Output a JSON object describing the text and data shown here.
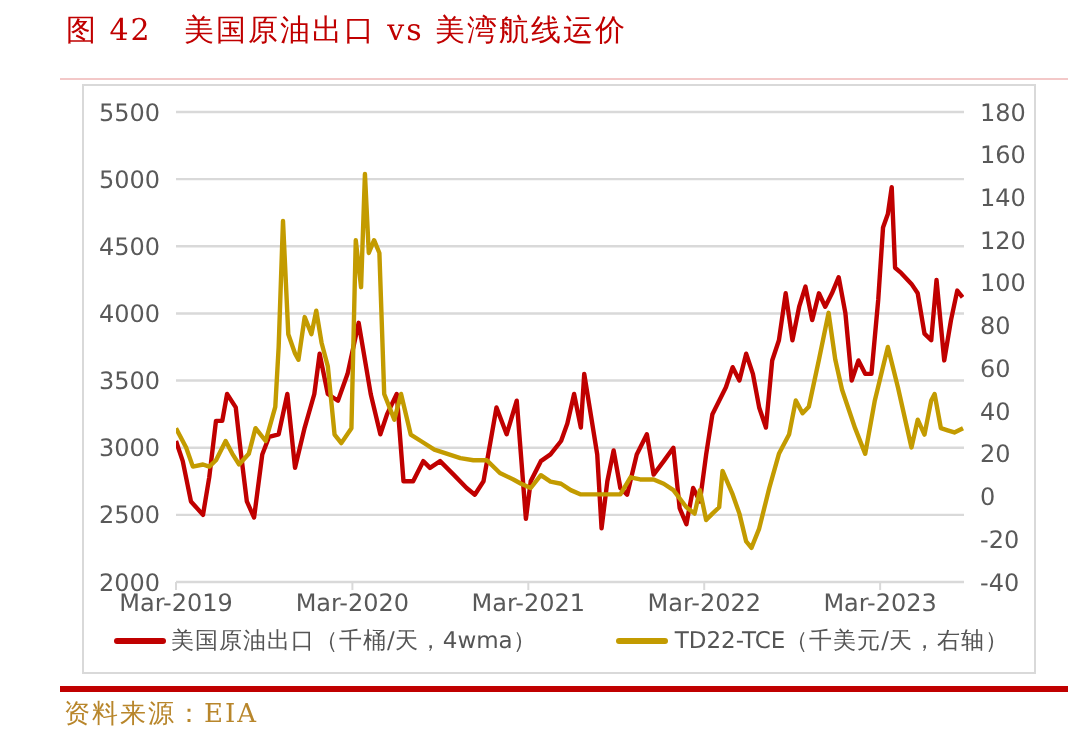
{
  "chart_data": {
    "type": "line",
    "title": "图 42　美国原油出口 vs 美湾航线运价",
    "annotations": [
      "资料来源：EIA"
    ],
    "legend": "bottom",
    "grid": "y",
    "marker": "none",
    "line_style": "solid",
    "xlim": [
      "2019-03-01",
      "2023-08-22"
    ],
    "xticks": [
      {
        "value": "2019-03-01",
        "label": "Mar-2019"
      },
      {
        "value": "2020-03-01",
        "label": "Mar-2020"
      },
      {
        "value": "2021-03-01",
        "label": "Mar-2021"
      },
      {
        "value": "2022-03-01",
        "label": "Mar-2022"
      },
      {
        "value": "2023-03-01",
        "label": "Mar-2023"
      }
    ],
    "ylim": [
      2000,
      5500
    ],
    "yticks": [
      2000,
      2500,
      3000,
      3500,
      4000,
      4500,
      5000,
      5500
    ],
    "y2lim": [
      -40,
      180
    ],
    "y2ticks": [
      -40,
      -20,
      0,
      20,
      40,
      60,
      80,
      100,
      120,
      140,
      160,
      180
    ],
    "series": [
      {
        "name": "美国原油出口（千桶/天，4wma）",
        "color": "#c00000",
        "x": [
          "2019-03-01",
          "2019-03-15",
          "2019-04-01",
          "2019-04-26",
          "2019-05-09",
          "2019-05-23",
          "2019-06-05",
          "2019-06-15",
          "2019-07-03",
          "2019-07-14",
          "2019-07-26",
          "2019-08-10",
          "2019-08-27",
          "2019-09-10",
          "2019-09-30",
          "2019-10-18",
          "2019-11-03",
          "2019-11-23",
          "2019-12-13",
          "2019-12-24",
          "2020-01-10",
          "2020-01-31",
          "2020-02-20",
          "2020-03-14",
          "2020-04-08",
          "2020-04-28",
          "2020-05-12",
          "2020-06-01",
          "2020-06-15",
          "2020-07-05",
          "2020-07-26",
          "2020-08-09",
          "2020-08-30",
          "2020-09-27",
          "2020-10-24",
          "2020-11-10",
          "2020-11-28",
          "2020-12-25",
          "2021-01-15",
          "2021-02-05",
          "2021-02-24",
          "2021-03-06",
          "2021-03-27",
          "2021-04-16",
          "2021-05-08",
          "2021-05-21",
          "2021-06-04",
          "2021-06-18",
          "2021-06-25",
          "2021-07-22",
          "2021-07-31",
          "2021-08-12",
          "2021-08-25",
          "2021-09-08",
          "2021-09-22",
          "2021-10-12",
          "2021-11-02",
          "2021-11-16",
          "2021-12-07",
          "2021-12-27",
          "2022-01-09",
          "2022-01-23",
          "2022-02-06",
          "2022-02-20",
          "2022-03-05",
          "2022-03-18",
          "2022-04-01",
          "2022-04-15",
          "2022-04-29",
          "2022-05-13",
          "2022-05-27",
          "2022-06-10",
          "2022-06-23",
          "2022-07-07",
          "2022-07-20",
          "2022-08-03",
          "2022-08-17",
          "2022-08-31",
          "2022-09-14",
          "2022-09-27",
          "2022-10-11",
          "2022-10-25",
          "2022-11-07",
          "2022-11-21",
          "2022-12-05",
          "2022-12-19",
          "2023-01-01",
          "2023-01-15",
          "2023-01-29",
          "2023-02-11",
          "2023-02-25",
          "2023-03-07",
          "2023-03-17",
          "2023-03-25",
          "2023-04-01",
          "2023-04-14",
          "2023-05-05",
          "2023-05-18",
          "2023-06-01",
          "2023-06-15",
          "2023-06-26",
          "2023-07-12",
          "2023-07-26",
          "2023-08-08",
          "2023-08-19"
        ],
        "values": [
          3050,
          2900,
          2600,
          2500,
          2780,
          3200,
          3200,
          3400,
          3300,
          2950,
          2600,
          2480,
          2950,
          3080,
          3100,
          3400,
          2850,
          3150,
          3400,
          3700,
          3400,
          3350,
          3550,
          3930,
          3400,
          3100,
          3250,
          3400,
          2750,
          2750,
          2900,
          2850,
          2900,
          2800,
          2700,
          2650,
          2750,
          3300,
          3100,
          3350,
          2470,
          2750,
          2900,
          2950,
          3050,
          3180,
          3400,
          3150,
          3550,
          2950,
          2400,
          2750,
          2980,
          2700,
          2650,
          2950,
          3100,
          2800,
          2900,
          3000,
          2550,
          2430,
          2700,
          2600,
          2950,
          3250,
          3350,
          3450,
          3600,
          3500,
          3700,
          3550,
          3300,
          3150,
          3650,
          3800,
          4150,
          3800,
          4050,
          4200,
          3950,
          4150,
          4050,
          4150,
          4270,
          4000,
          3500,
          3650,
          3550,
          3550,
          4100,
          4640,
          4740,
          4940,
          4340,
          4300,
          4220,
          4150,
          3850,
          3800,
          4250,
          3650,
          3950,
          4170,
          4120
        ]
      },
      {
        "name": "TD22-TCE（千美元/天，右轴）",
        "color": "#c39b00",
        "axis": "y2",
        "x": [
          "2019-03-01",
          "2019-03-22",
          "2019-04-05",
          "2019-04-26",
          "2019-05-09",
          "2019-05-23",
          "2019-06-12",
          "2019-06-26",
          "2019-07-10",
          "2019-07-30",
          "2019-08-13",
          "2019-09-03",
          "2019-09-23",
          "2019-09-30",
          "2019-10-09",
          "2019-10-20",
          "2019-11-03",
          "2019-11-10",
          "2019-11-23",
          "2019-12-07",
          "2019-12-17",
          "2019-12-28",
          "2020-01-10",
          "2020-01-24",
          "2020-02-07",
          "2020-02-28",
          "2020-03-08",
          "2020-03-19",
          "2020-03-27",
          "2020-04-04",
          "2020-04-15",
          "2020-04-26",
          "2020-05-06",
          "2020-05-27",
          "2020-06-10",
          "2020-06-30",
          "2020-07-21",
          "2020-08-18",
          "2020-09-14",
          "2020-10-11",
          "2020-11-07",
          "2020-12-05",
          "2021-01-01",
          "2021-01-29",
          "2021-02-14",
          "2021-03-06",
          "2021-03-27",
          "2021-04-16",
          "2021-05-08",
          "2021-05-28",
          "2021-06-18",
          "2021-07-15",
          "2021-08-12",
          "2021-09-08",
          "2021-09-29",
          "2021-10-19",
          "2021-11-16",
          "2021-12-07",
          "2021-12-27",
          "2022-01-23",
          "2022-02-09",
          "2022-02-20",
          "2022-03-05",
          "2022-03-18",
          "2022-04-01",
          "2022-04-08",
          "2022-04-29",
          "2022-05-13",
          "2022-05-27",
          "2022-06-07",
          "2022-06-23",
          "2022-07-14",
          "2022-08-03",
          "2022-08-24",
          "2022-09-07",
          "2022-09-21",
          "2022-10-04",
          "2022-10-25",
          "2022-11-14",
          "2022-11-28",
          "2022-12-12",
          "2023-01-08",
          "2023-01-29",
          "2023-02-18",
          "2023-03-17",
          "2023-04-07",
          "2023-05-05",
          "2023-05-18",
          "2023-06-01",
          "2023-06-15",
          "2023-06-22",
          "2023-07-05",
          "2023-07-19",
          "2023-08-02",
          "2023-08-20"
        ],
        "values": [
          32,
          23,
          14,
          15,
          14,
          17,
          26,
          20,
          15,
          20,
          32,
          26,
          42,
          70,
          129,
          76,
          67,
          64,
          84,
          76,
          87,
          72,
          61,
          29,
          25,
          32,
          120,
          98,
          151,
          114,
          120,
          114,
          48,
          36,
          48,
          29,
          26,
          22,
          20,
          18,
          17,
          17,
          11,
          8,
          6,
          4,
          10,
          7,
          6,
          3,
          1,
          1,
          1,
          1,
          9,
          8,
          8,
          6,
          3,
          -5,
          -8,
          3,
          -11,
          -8,
          -5,
          12,
          1,
          -8,
          -21,
          -24,
          -15,
          4,
          20,
          29,
          45,
          39,
          42,
          64,
          86,
          64,
          50,
          32,
          20,
          45,
          70,
          51,
          23,
          36,
          29,
          45,
          48,
          32,
          31,
          30,
          32
        ]
      }
    ]
  }
}
